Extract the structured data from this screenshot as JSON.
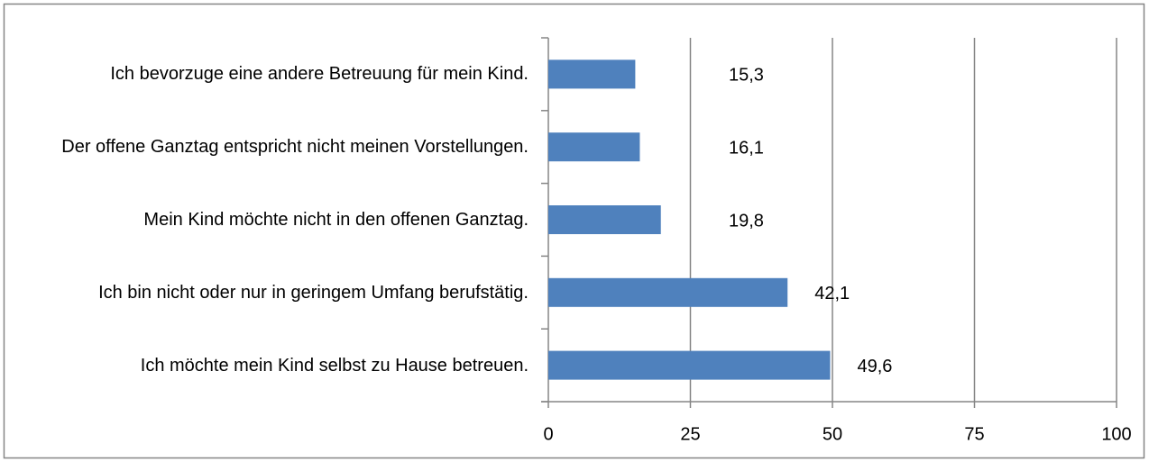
{
  "chart_data": {
    "type": "bar",
    "orientation": "horizontal",
    "categories": [
      "Ich bevorzuge eine andere Betreuung für mein Kind.",
      "Der offene Ganztag entspricht nicht meinen Vorstellungen.",
      "Mein Kind möchte nicht in den offenen Ganztag.",
      "Ich bin nicht oder nur in geringem Umfang berufstätig.",
      "Ich möchte mein Kind selbst zu Hause betreuen."
    ],
    "values": [
      15.3,
      16.1,
      19.8,
      42.1,
      49.6
    ],
    "value_labels": [
      "15,3",
      "16,1",
      "19,8",
      "42,1",
      "49,6"
    ],
    "color": "#4f81bd",
    "xlim": [
      0,
      100
    ],
    "xticks": [
      0,
      25,
      50,
      75,
      100
    ],
    "grid": true
  }
}
